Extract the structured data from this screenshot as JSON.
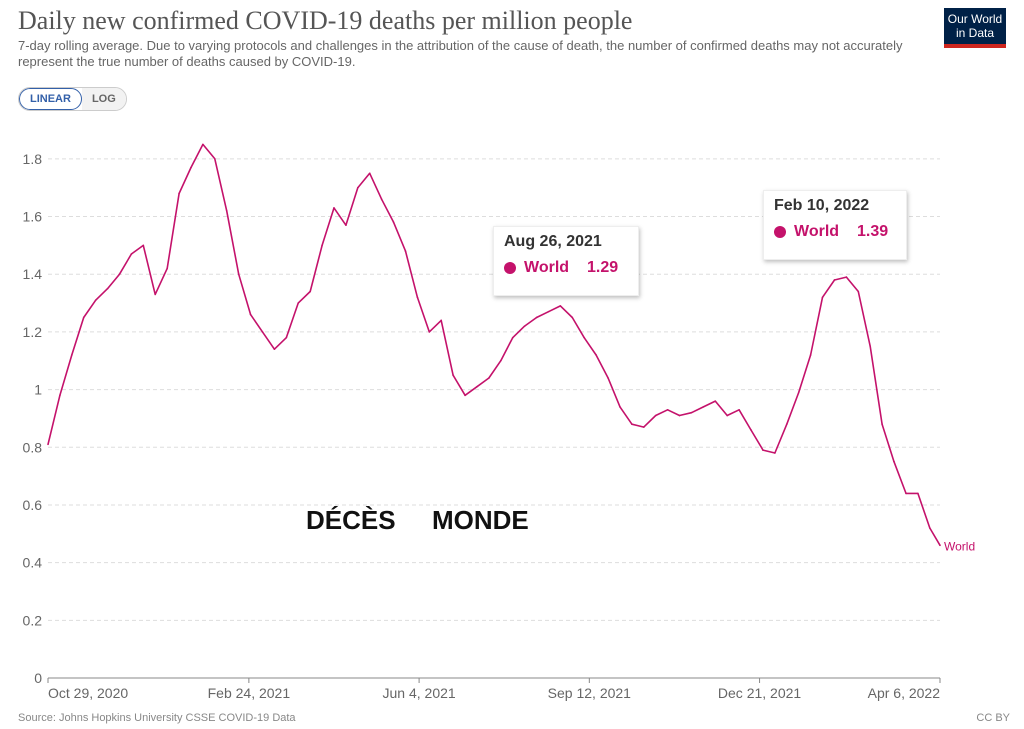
{
  "header": {
    "title": "Daily new confirmed COVID-19 deaths per million people",
    "subtitle": "7-day rolling average. Due to varying protocols and challenges in the attribution of the cause of death, the number of confirmed deaths may not accurately represent the true number of deaths caused by COVID-19.",
    "logo": "Our World in Data"
  },
  "controls": {
    "linear_label": "LINEAR",
    "log_label": "LOG",
    "active": "linear"
  },
  "overlay": {
    "word1": "DÉCÈS",
    "word2": "MONDE"
  },
  "footer": {
    "source": "Source: Johns Hopkins University CSSE COVID-19 Data",
    "license": "CC BY"
  },
  "tooltips": [
    {
      "date": "Aug 26, 2021",
      "series": "World",
      "value": "1.29"
    },
    {
      "date": "Feb 10, 2022",
      "series": "World",
      "value": "1.39"
    }
  ],
  "colors": {
    "series": "#c4126b",
    "grid": "#dddddd",
    "axis": "#666666"
  },
  "chart_data": {
    "type": "line",
    "title": "Daily new confirmed COVID-19 deaths per million people",
    "xlabel": "",
    "ylabel": "",
    "ylim": [
      0,
      1.8
    ],
    "y_ticks": [
      0,
      0.2,
      0.4,
      0.6,
      0.8,
      1,
      1.2,
      1.4,
      1.6,
      1.8
    ],
    "y_tick_labels": [
      "0",
      "0.2",
      "0.4",
      "0.6",
      "0.8",
      "1",
      "1.2",
      "1.4",
      "1.6",
      "1.8"
    ],
    "x_tick_labels": [
      "Oct 29, 2020",
      "Feb 24, 2021",
      "Jun 4, 2021",
      "Sep 12, 2021",
      "Dec 21, 2021",
      "Apr 6, 2022"
    ],
    "x_ticks": [
      "2020-10-29",
      "2021-02-24",
      "2021-06-04",
      "2021-09-12",
      "2021-12-21",
      "2022-04-06"
    ],
    "grid": true,
    "series": [
      {
        "name": "World",
        "color": "#c4126b",
        "x": [
          "2020-10-29",
          "2020-11-05",
          "2020-11-12",
          "2020-11-19",
          "2020-11-26",
          "2020-12-03",
          "2020-12-10",
          "2020-12-17",
          "2020-12-24",
          "2020-12-31",
          "2021-01-07",
          "2021-01-14",
          "2021-01-21",
          "2021-01-28",
          "2021-02-04",
          "2021-02-11",
          "2021-02-18",
          "2021-02-25",
          "2021-03-04",
          "2021-03-11",
          "2021-03-18",
          "2021-03-25",
          "2021-04-01",
          "2021-04-08",
          "2021-04-15",
          "2021-04-22",
          "2021-04-29",
          "2021-05-06",
          "2021-05-13",
          "2021-05-20",
          "2021-05-27",
          "2021-06-03",
          "2021-06-10",
          "2021-06-17",
          "2021-06-24",
          "2021-07-01",
          "2021-07-08",
          "2021-07-15",
          "2021-07-22",
          "2021-07-29",
          "2021-08-05",
          "2021-08-12",
          "2021-08-19",
          "2021-08-26",
          "2021-09-02",
          "2021-09-09",
          "2021-09-16",
          "2021-09-23",
          "2021-09-30",
          "2021-10-07",
          "2021-10-14",
          "2021-10-21",
          "2021-10-28",
          "2021-11-04",
          "2021-11-11",
          "2021-11-18",
          "2021-11-25",
          "2021-12-02",
          "2021-12-09",
          "2021-12-16",
          "2021-12-23",
          "2021-12-30",
          "2022-01-06",
          "2022-01-13",
          "2022-01-20",
          "2022-01-27",
          "2022-02-03",
          "2022-02-10",
          "2022-02-17",
          "2022-02-24",
          "2022-03-03",
          "2022-03-10",
          "2022-03-17",
          "2022-03-24",
          "2022-03-31",
          "2022-04-06"
        ],
        "values": [
          0.81,
          0.98,
          1.12,
          1.25,
          1.31,
          1.35,
          1.4,
          1.47,
          1.5,
          1.33,
          1.42,
          1.68,
          1.77,
          1.85,
          1.8,
          1.62,
          1.4,
          1.26,
          1.2,
          1.14,
          1.18,
          1.3,
          1.34,
          1.5,
          1.63,
          1.57,
          1.7,
          1.75,
          1.66,
          1.58,
          1.48,
          1.32,
          1.2,
          1.24,
          1.05,
          0.98,
          1.01,
          1.04,
          1.1,
          1.18,
          1.22,
          1.25,
          1.27,
          1.29,
          1.25,
          1.18,
          1.12,
          1.04,
          0.94,
          0.88,
          0.87,
          0.91,
          0.93,
          0.91,
          0.92,
          0.94,
          0.96,
          0.91,
          0.93,
          0.86,
          0.79,
          0.78,
          0.88,
          0.99,
          1.12,
          1.32,
          1.38,
          1.39,
          1.34,
          1.15,
          0.88,
          0.75,
          0.64,
          0.64,
          0.52,
          0.46
        ]
      }
    ],
    "end_label": "World"
  }
}
